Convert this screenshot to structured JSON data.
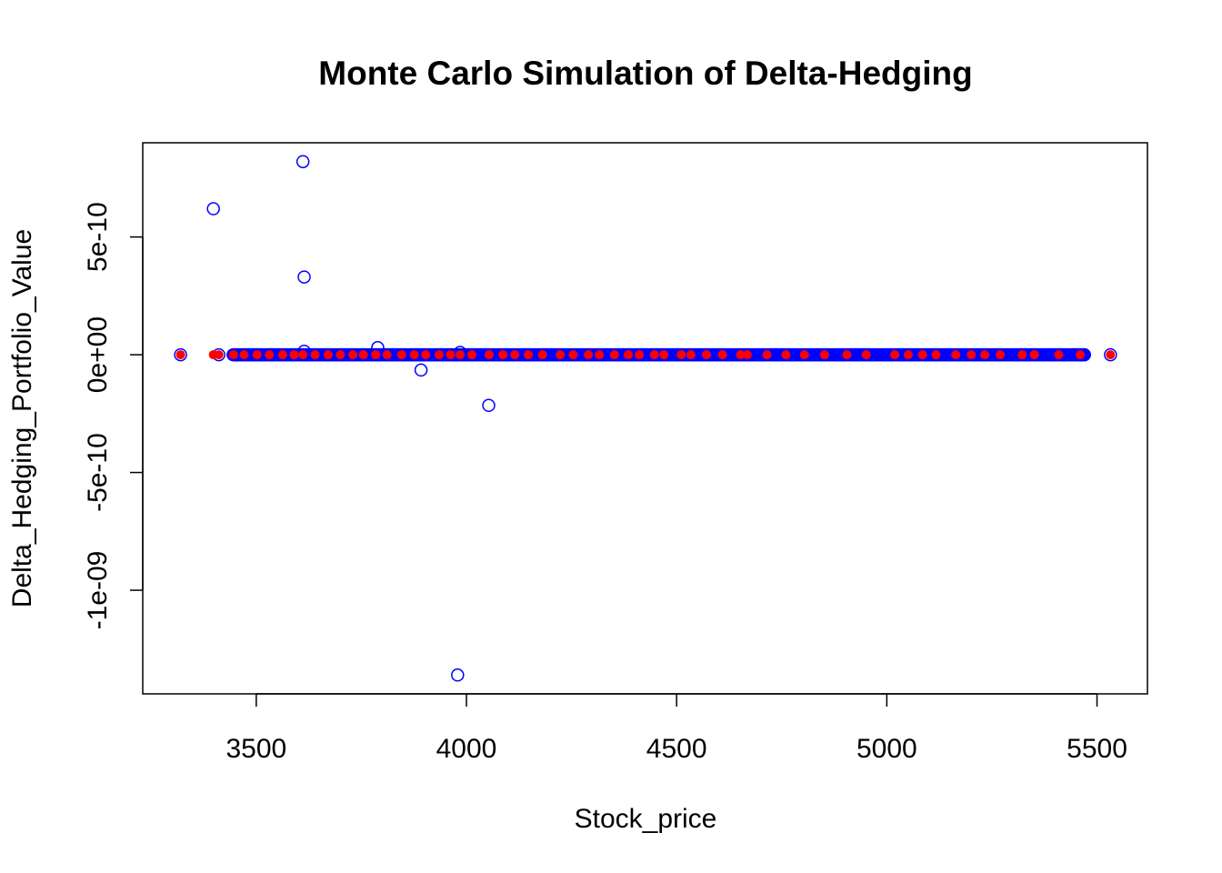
{
  "chart_data": {
    "type": "scatter",
    "title": "Monte Carlo Simulation of Delta-Hedging",
    "xlabel": "Stock_price",
    "ylabel": "Delta_Hedging_Portfolio_Value",
    "xlim": [
      3230,
      5620
    ],
    "ylim": [
      -1.44e-09,
      9e-10
    ],
    "x_ticks": [
      {
        "value": 3500,
        "label": "3500"
      },
      {
        "value": 4000,
        "label": "4000"
      },
      {
        "value": 4500,
        "label": "4500"
      },
      {
        "value": 5000,
        "label": "5000"
      },
      {
        "value": 5500,
        "label": "5500"
      }
    ],
    "y_ticks": [
      {
        "value": -1e-09,
        "label": "-1e-09"
      },
      {
        "value": -5e-10,
        "label": "-5e-10"
      },
      {
        "value": 0,
        "label": "0e+00"
      },
      {
        "value": 5e-10,
        "label": "5e-10"
      }
    ],
    "grid": false,
    "colors": {
      "hollow_series": "#0000ff",
      "filled_series": "#ff0000"
    },
    "hollow_outliers": [
      {
        "x": 3398,
        "y": 6.2e-10
      },
      {
        "x": 3611,
        "y": 8.2e-10
      },
      {
        "x": 3614,
        "y": 3.3e-10
      },
      {
        "x": 3789,
        "y": 3e-11
      },
      {
        "x": 3892,
        "y": -6.5e-11
      },
      {
        "x": 4053,
        "y": -2.15e-10
      },
      {
        "x": 3979,
        "y": -1.36e-09
      },
      {
        "x": 3614,
        "y": 1.5e-11
      },
      {
        "x": 3985,
        "y": 1e-11
      }
    ],
    "hollow_band": {
      "x_from": 3445,
      "x_to": 5470,
      "count": 760,
      "y": 0
    },
    "hollow_isolated_x": [
      3320,
      3411,
      3532,
      5150,
      5320,
      5410,
      5446,
      5462,
      5470,
      5532
    ],
    "filled_x": [
      3320,
      3398,
      3411,
      3446,
      3471,
      3502,
      3531,
      3563,
      3590,
      3611,
      3640,
      3671,
      3700,
      3730,
      3755,
      3784,
      3811,
      3846,
      3876,
      3903,
      3935,
      3962,
      3985,
      4013,
      4054,
      4087,
      4115,
      4147,
      4181,
      4223,
      4254,
      4290,
      4316,
      4352,
      4385,
      4411,
      4447,
      4470,
      4511,
      4534,
      4571,
      4609,
      4652,
      4668,
      4715,
      4760,
      4804,
      4852,
      4905,
      4951,
      5019,
      5051,
      5085,
      5117,
      5164,
      5201,
      5233,
      5270,
      5322,
      5351,
      5409,
      5460,
      5532
    ]
  }
}
